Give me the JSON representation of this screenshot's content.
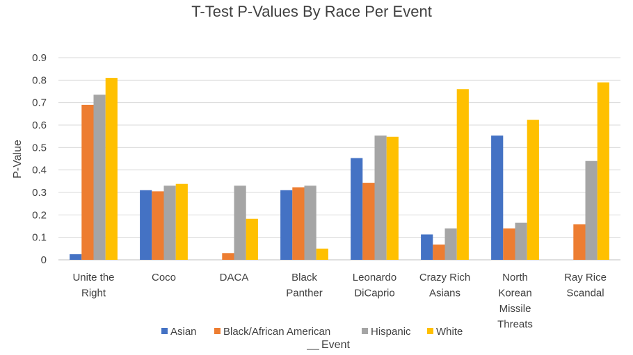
{
  "chart_data": {
    "type": "bar",
    "title": "T-Test P-Values By Race Per Event",
    "xlabel": "Event",
    "ylabel": "P-Value",
    "ylim": [
      0,
      0.9
    ],
    "yticks": [
      "0",
      "0.1",
      "0.2",
      "0.3",
      "0.4",
      "0.5",
      "0.6",
      "0.7",
      "0.8",
      "0.9"
    ],
    "grid": true,
    "legend_position": "bottom",
    "categories": [
      [
        "Unite the",
        "Right"
      ],
      [
        "Coco"
      ],
      [
        "DACA"
      ],
      [
        "Black",
        "Panther"
      ],
      [
        "Leonardo",
        "DiCaprio"
      ],
      [
        "Crazy Rich",
        "Asians"
      ],
      [
        "North",
        "Korean",
        "Missile",
        "Threats"
      ],
      [
        "Ray Rice",
        "Scandal"
      ]
    ],
    "series": [
      {
        "name": "Asian",
        "color": "#4472C4",
        "values": [
          0.025,
          0.31,
          0,
          0.31,
          0.453,
          0.113,
          0.553,
          0
        ]
      },
      {
        "name": "Black/African American",
        "color": "#ED7D31",
        "values": [
          0.69,
          0.305,
          0.03,
          0.323,
          0.343,
          0.068,
          0.14,
          0.158
        ]
      },
      {
        "name": "Hispanic",
        "color": "#A5A5A5",
        "values": [
          0.735,
          0.33,
          0.33,
          0.33,
          0.553,
          0.14,
          0.165,
          0.44
        ]
      },
      {
        "name": "White",
        "color": "#FFC000",
        "values": [
          0.81,
          0.338,
          0.183,
          0.05,
          0.548,
          0.76,
          0.623,
          0.79
        ]
      }
    ]
  }
}
